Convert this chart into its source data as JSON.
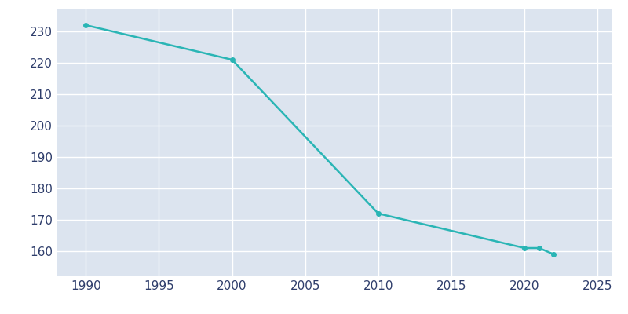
{
  "years": [
    1990,
    2000,
    2010,
    2020,
    2021,
    2022
  ],
  "population": [
    232,
    221,
    172,
    161,
    161,
    159
  ],
  "line_color": "#2ab5b5",
  "marker_color": "#2ab5b5",
  "bg_color": "#e3e8f0",
  "plot_bg_color": "#dce4ef",
  "grid_color": "#ffffff",
  "xlim": [
    1988,
    2026
  ],
  "ylim": [
    152,
    237
  ],
  "yticks": [
    160,
    170,
    180,
    190,
    200,
    210,
    220,
    230
  ],
  "xticks": [
    1990,
    1995,
    2000,
    2005,
    2010,
    2015,
    2020,
    2025
  ],
  "marker_size": 4,
  "line_width": 1.8,
  "tick_label_color": "#2e3d6b",
  "tick_label_size": 11
}
